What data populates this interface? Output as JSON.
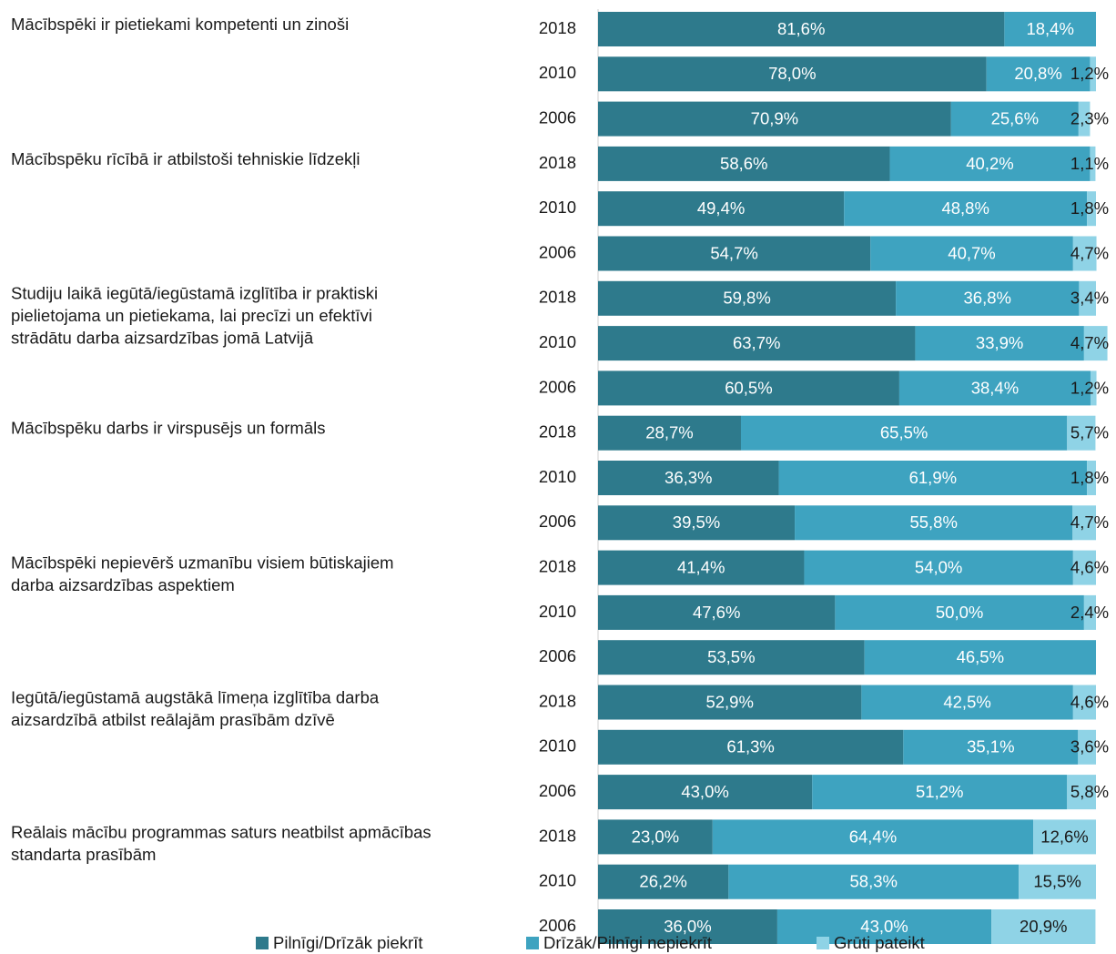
{
  "chart_data": {
    "type": "stacked-barh",
    "groups": [
      [
        "Mācībspēki ir pietiekami kompetenti un zinoši"
      ],
      [
        "Mācībspēku rīcībā ir atbilstoši tehniskie līdzekļi"
      ],
      [
        "Studiju laikā iegūtā/iegūstamā izglītība ir praktiski",
        "pielietojama un pietiekama, lai precīzi un efektīvi",
        "strādātu darba aizsardzības jomā Latvijā"
      ],
      [
        "Mācībspēku darbs ir virspusējs un formāls"
      ],
      [
        "Mācībspēki nepievērš uzmanību visiem būtiskajiem",
        "darba aizsardzības aspektiem"
      ],
      [
        "Iegūtā/iegūstamā augstākā līmeņa izglītība darba",
        "aizsardzībā atbilst reālajām prasībām dzīvē"
      ],
      [
        "Reālais mācību programmas saturs neatbilst apmācības",
        "standarta prasībām"
      ]
    ],
    "categories": [
      "2018",
      "2010",
      "2006",
      "2018",
      "2010",
      "2006",
      "2018",
      "2010",
      "2006",
      "2018",
      "2010",
      "2006",
      "2018",
      "2010",
      "2006",
      "2018",
      "2010",
      "2006",
      "2018",
      "2010",
      "2006"
    ],
    "xlim": [
      0,
      100
    ],
    "series": [
      {
        "name": "Pilnīgi/Drīzāk piekrīt",
        "color": "#2e7a8c",
        "values": [
          81.6,
          78.0,
          70.9,
          58.6,
          49.4,
          54.7,
          59.8,
          63.7,
          60.5,
          28.7,
          36.3,
          39.5,
          41.4,
          47.6,
          53.5,
          52.9,
          61.3,
          43.0,
          23.0,
          26.2,
          36.0
        ],
        "value_labels": [
          "81,6%",
          "78,0%",
          "70,9%",
          "58,6%",
          "49,4%",
          "54,7%",
          "59,8%",
          "63,7%",
          "60,5%",
          "28,7%",
          "36,3%",
          "39,5%",
          "41,4%",
          "47,6%",
          "53,5%",
          "52,9%",
          "61,3%",
          "43,0%",
          "23,0%",
          "26,2%",
          "36,0%"
        ]
      },
      {
        "name": "Drīzāk/Pilnīgi nepiekrīt",
        "color": "#3ea3c0",
        "values": [
          18.4,
          20.8,
          25.6,
          40.2,
          48.8,
          40.7,
          36.8,
          33.9,
          38.4,
          65.5,
          61.9,
          55.8,
          54.0,
          50.0,
          46.5,
          42.5,
          35.1,
          51.2,
          64.4,
          58.3,
          43.0
        ],
        "value_labels": [
          "18,4%",
          "20,8%",
          "25,6%",
          "40,2%",
          "48,8%",
          "40,7%",
          "36,8%",
          "33,9%",
          "38,4%",
          "65,5%",
          "61,9%",
          "55,8%",
          "54,0%",
          "50,0%",
          "46,5%",
          "42,5%",
          "35,1%",
          "51,2%",
          "64,4%",
          "58,3%",
          "43,0%"
        ]
      },
      {
        "name": "Grūti pateikt",
        "color": "#8fd3e6",
        "values": [
          null,
          1.2,
          2.3,
          1.1,
          1.8,
          4.7,
          3.4,
          4.7,
          1.2,
          5.7,
          1.8,
          4.7,
          4.6,
          2.4,
          null,
          4.6,
          3.6,
          5.8,
          12.6,
          15.5,
          20.9
        ],
        "value_labels": [
          null,
          "1,2%",
          "2,3%",
          "1,1%",
          "1,8%",
          "4,7%",
          "3,4%",
          "4,7%",
          "1,2%",
          "5,7%",
          "1,8%",
          "4,7%",
          "4,6%",
          "2,4%",
          null,
          "4,6%",
          "3,6%",
          "5,8%",
          "12,6%",
          "15,5%",
          "20,9%"
        ]
      }
    ]
  }
}
